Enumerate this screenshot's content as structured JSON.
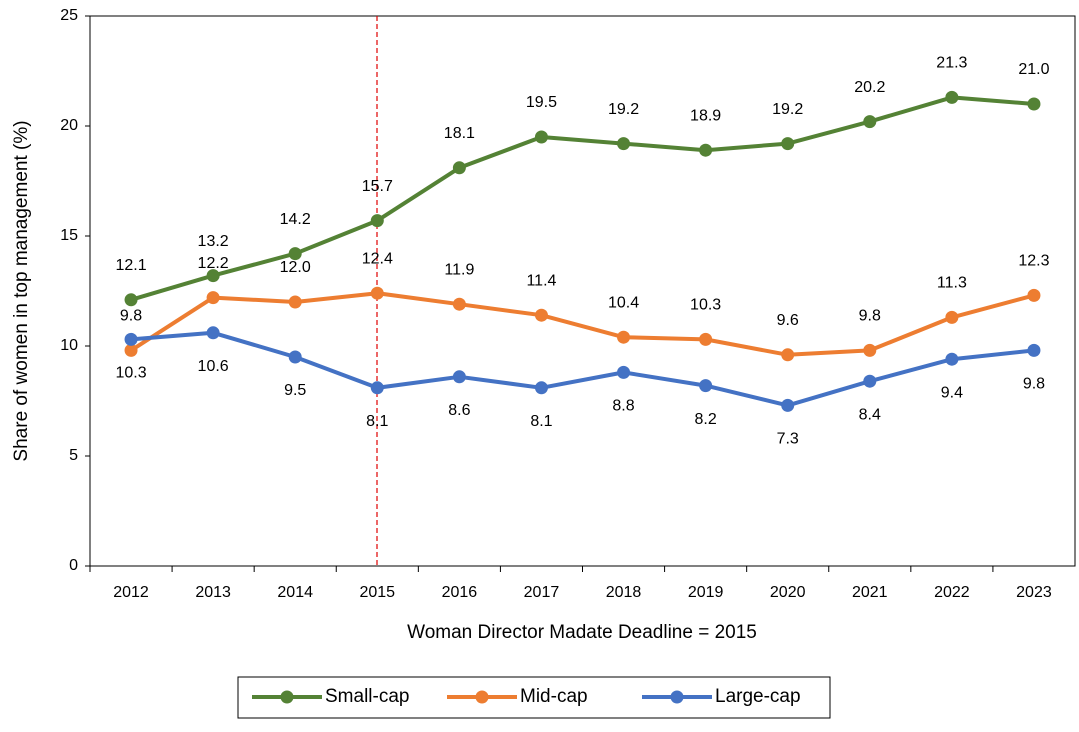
{
  "chart_data": {
    "type": "line",
    "y_label": "Share of women in top management (%)",
    "x_label": "Woman Director Madate Deadline = 2015",
    "categories": [
      "2012",
      "2013",
      "2014",
      "2015",
      "2016",
      "2017",
      "2018",
      "2019",
      "2020",
      "2021",
      "2022",
      "2023"
    ],
    "series": [
      {
        "name": "Small-cap",
        "color": "#548235",
        "values": [
          12.1,
          13.2,
          14.2,
          15.7,
          18.1,
          19.5,
          19.2,
          18.9,
          19.2,
          20.2,
          21.3,
          21.0
        ],
        "value_labels": [
          "12.1",
          "13.2",
          "14.2",
          "15.7",
          "18.1",
          "19.5",
          "19.2",
          "18.9",
          "19.2",
          "20.2",
          "21.3",
          "21.0"
        ]
      },
      {
        "name": "Mid-cap",
        "color": "#ED7D31",
        "values": [
          9.8,
          12.2,
          12.0,
          12.4,
          11.9,
          11.4,
          10.4,
          10.3,
          9.6,
          9.8,
          11.3,
          12.3
        ],
        "value_labels": [
          "9.8",
          "12.2",
          "12.0",
          "12.4",
          "11.9",
          "11.4",
          "10.4",
          "10.3",
          "9.6",
          "9.8",
          "11.3",
          "12.3"
        ]
      },
      {
        "name": "Large-cap",
        "color": "#4472C4",
        "values": [
          10.3,
          10.6,
          9.5,
          8.1,
          8.6,
          8.1,
          8.8,
          8.2,
          7.3,
          8.4,
          9.4,
          9.8
        ],
        "value_labels": [
          "10.3",
          "10.6",
          "9.5",
          "8.1",
          "8.6",
          "8.1",
          "8.8",
          "8.2",
          "7.3",
          "8.4",
          "9.4",
          "9.8"
        ]
      }
    ],
    "ylim": [
      0,
      25
    ],
    "yticks": [
      0,
      5,
      10,
      15,
      20,
      25
    ],
    "grid": false,
    "legend": "bottom"
  }
}
